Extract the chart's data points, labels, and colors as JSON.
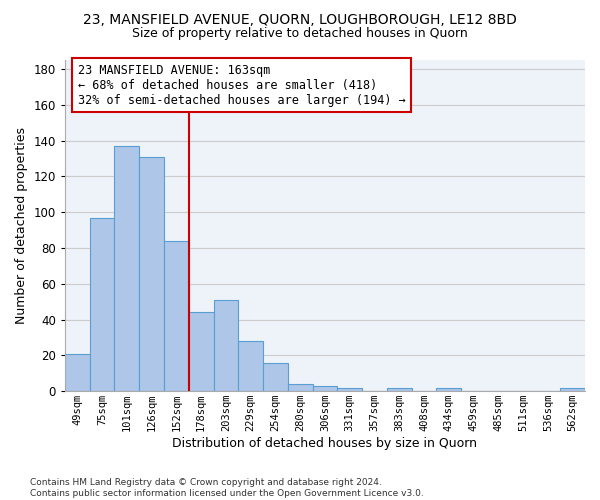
{
  "title": "23, MANSFIELD AVENUE, QUORN, LOUGHBOROUGH, LE12 8BD",
  "subtitle": "Size of property relative to detached houses in Quorn",
  "xlabel": "Distribution of detached houses by size in Quorn",
  "ylabel": "Number of detached properties",
  "categories": [
    "49sqm",
    "75sqm",
    "101sqm",
    "126sqm",
    "152sqm",
    "178sqm",
    "203sqm",
    "229sqm",
    "254sqm",
    "280sqm",
    "306sqm",
    "331sqm",
    "357sqm",
    "383sqm",
    "408sqm",
    "434sqm",
    "459sqm",
    "485sqm",
    "511sqm",
    "536sqm",
    "562sqm"
  ],
  "values": [
    21,
    97,
    137,
    131,
    84,
    44,
    51,
    28,
    16,
    4,
    3,
    2,
    0,
    2,
    0,
    2,
    0,
    0,
    0,
    0,
    2
  ],
  "bar_color": "#aec6e8",
  "bar_edge_color": "#5a9fd4",
  "vline_color": "#cc0000",
  "annotation_text": "23 MANSFIELD AVENUE: 163sqm\n← 68% of detached houses are smaller (418)\n32% of semi-detached houses are larger (194) →",
  "annotation_box_color": "#cc0000",
  "ylim": [
    0,
    185
  ],
  "yticks": [
    0,
    20,
    40,
    60,
    80,
    100,
    120,
    140,
    160,
    180
  ],
  "grid_color": "#cccccc",
  "bg_color": "#eef2f9",
  "footnote": "Contains HM Land Registry data © Crown copyright and database right 2024.\nContains public sector information licensed under the Open Government Licence v3.0.",
  "title_fontsize": 10,
  "subtitle_fontsize": 9,
  "xlabel_fontsize": 9,
  "ylabel_fontsize": 9,
  "annotation_fontsize": 8.5
}
